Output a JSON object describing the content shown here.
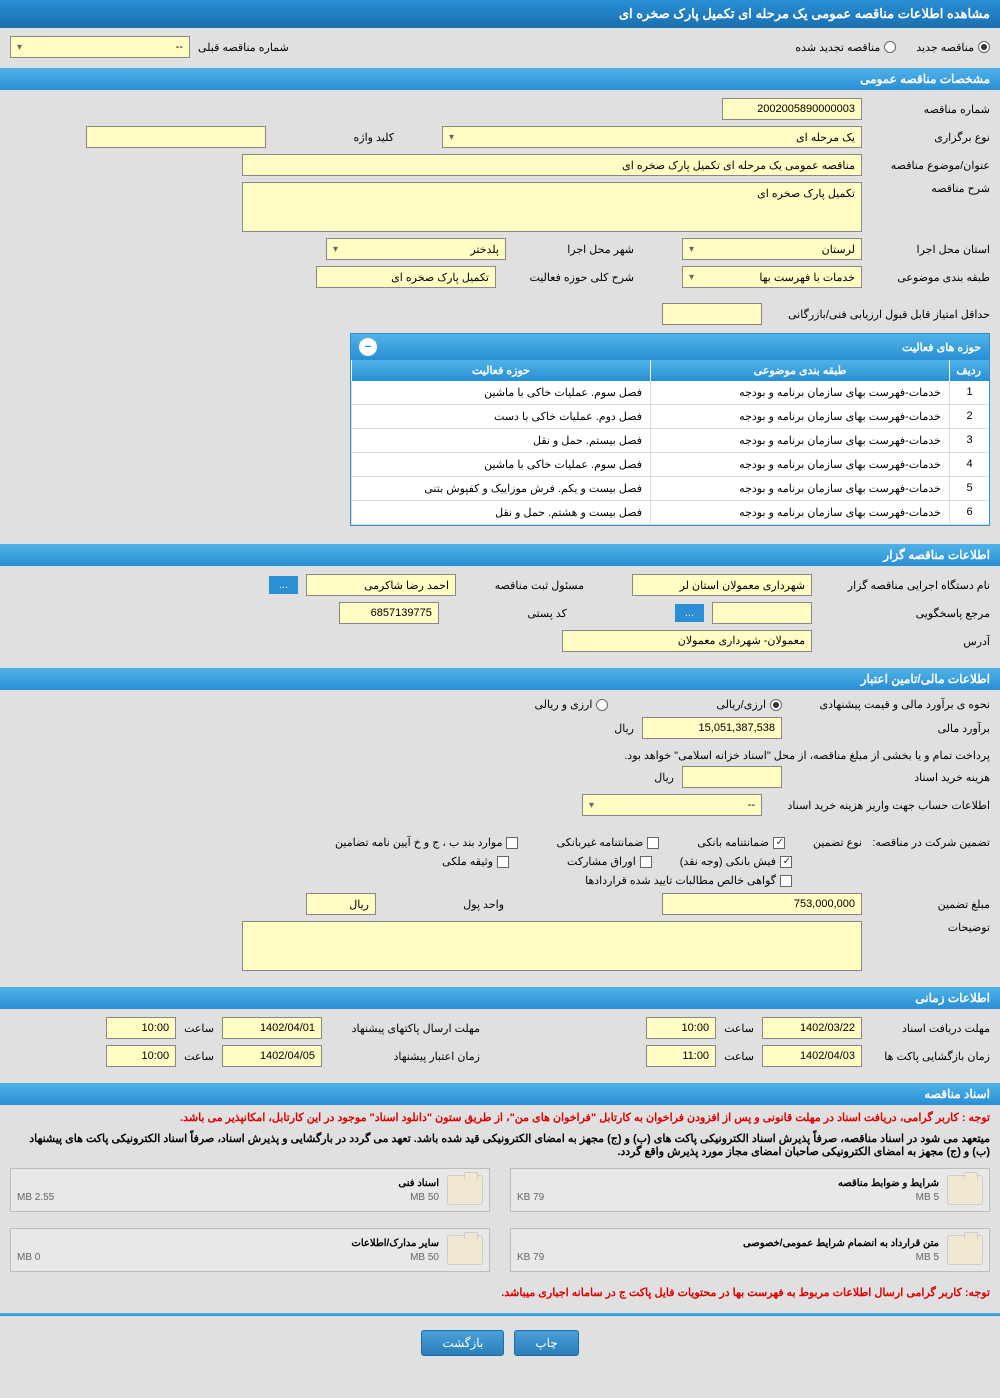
{
  "page_title": "مشاهده اطلاعات مناقصه عمومی یک مرحله ای تکمیل پارک صخره ای",
  "radio_options": {
    "new_tender": "مناقصه جدید",
    "renewed_tender": "مناقصه تجدید شده"
  },
  "prev_tender_label": "شماره مناقصه قبلی",
  "prev_tender_value": "--",
  "sections": {
    "general": "مشخصات مناقصه عمومی",
    "activities": "حوزه های فعالیت",
    "organizer": "اطلاعات مناقصه گزار",
    "financial": "اطلاعات مالی/تامین اعتبار",
    "timing": "اطلاعات زمانی",
    "documents": "اسناد مناقصه"
  },
  "general": {
    "tender_no_label": "شماره مناقصه",
    "tender_no": "2002005890000003",
    "type_label": "نوع برگزاری",
    "type": "یک مرحله ای",
    "keyword_label": "کلید واژه",
    "keyword": "",
    "title_label": "عنوان/موضوع مناقصه",
    "title": "مناقصه عمومی یک مرحله ای تکمیل پارک صخره ای",
    "desc_label": "شرح مناقصه",
    "desc": "تکمیل پارک صخره ای",
    "province_label": "استان محل اجرا",
    "province": "لرستان",
    "city_label": "شهر محل اجرا",
    "city": "پلدختر",
    "category_label": "طبقه بندی موضوعی",
    "category": "خدمات با فهرست بها",
    "activity_desc_label": "شرح کلی حوزه فعالیت",
    "activity_desc": "تکمیل پارک صخره ای",
    "min_score_label": "حداقل امتیاز قابل قبول ارزیابی فنی/بازرگانی",
    "min_score": ""
  },
  "table": {
    "col_idx": "ردیف",
    "col_category": "طبقه بندی موضوعی",
    "col_activity": "حوزه فعالیت",
    "rows": [
      {
        "idx": "1",
        "cat": "خدمات-فهرست بهای سازمان برنامه و بودجه",
        "act": "فصل سوم. عملیات خاکی با ماشین"
      },
      {
        "idx": "2",
        "cat": "خدمات-فهرست بهای سازمان برنامه و بودجه",
        "act": "فصل دوم. عملیات خاکی با دست"
      },
      {
        "idx": "3",
        "cat": "خدمات-فهرست بهای سازمان برنامه و بودجه",
        "act": "فصل بیستم. حمل و نقل"
      },
      {
        "idx": "4",
        "cat": "خدمات-فهرست بهای سازمان برنامه و بودجه",
        "act": "فصل سوم. عملیات خاکی با ماشین"
      },
      {
        "idx": "5",
        "cat": "خدمات-فهرست بهای سازمان برنامه و بودجه",
        "act": "فصل بیست و یکم. فرش موزاییک و کفپوش بتنی"
      },
      {
        "idx": "6",
        "cat": "خدمات-فهرست بهای سازمان برنامه و بودجه",
        "act": "فصل بیست و هشتم. حمل و نقل"
      }
    ]
  },
  "organizer": {
    "name_label": "نام دستگاه اجرایی مناقصه گزار",
    "name": "شهرداری معمولان استان لر",
    "reg_officer_label": "مسئول ثبت مناقصه",
    "reg_officer": "احمد رضا  شاکرمی",
    "contact_label": "مرجع پاسخگویی",
    "contact": "",
    "postal_label": "کد پستی",
    "postal": "6857139775",
    "address_label": "آدرس",
    "address": "معمولان- شهرداری معمولان",
    "more_btn": "..."
  },
  "financial": {
    "method_label": "نحوه ی برآورد مالی و قیمت پیشنهادی",
    "method_opt1": "ارزی/ریالی",
    "method_opt2": "ارزی و ریالی",
    "estimate_label": "برآورد مالی",
    "estimate": "15,051,387,538",
    "currency": "ریال",
    "note1": "پرداخت تمام و یا بخشی از مبلغ مناقصه، از محل \"اسناد خزانه اسلامی\" خواهد بود.",
    "purchase_cost_label": "هزینه خرید اسناد",
    "purchase_cost": "",
    "purchase_unit": "ریال",
    "account_info_label": "اطلاعات حساب جهت واریز هزینه خرید اسناد",
    "account_info": "--",
    "guarantee_label": "تضمین شرکت در مناقصه:",
    "guarantee_type_label": "نوع تضمین",
    "guarantee_types": {
      "bank_guarantee": "ضمانتنامه بانکی",
      "nonbank_guarantee": "ضمانتنامه غیربانکی",
      "regulation_items": "موارد بند ب ، ج و خ آیین نامه تضامین",
      "bank_receipt": "فیش بانکی (وجه نقد)",
      "securities": "اوراق مشارکت",
      "property_doc": "وثیقه ملکی",
      "confirmed_claims": "گواهی خالص مطالبات تایید شده قراردادها"
    },
    "guarantee_amount_label": "مبلغ تضمین",
    "guarantee_amount": "753,000,000",
    "unit_label": "واحد پول",
    "unit": "ریال",
    "explanation_label": "توضیحات",
    "explanation": ""
  },
  "timing": {
    "receive_deadline_label": "مهلت دریافت اسناد",
    "receive_deadline_date": "1402/03/22",
    "receive_deadline_time_label": "ساعت",
    "receive_deadline_time": "10:00",
    "submit_deadline_label": "مهلت ارسال پاکتهای پیشنهاد",
    "submit_deadline_date": "1402/04/01",
    "submit_deadline_time": "10:00",
    "opening_label": "زمان بازگشایی پاکت ها",
    "opening_date": "1402/04/03",
    "opening_time": "11:00",
    "validity_label": "زمان اعتبار پیشنهاد",
    "validity_date": "1402/04/05",
    "validity_time": "10:00"
  },
  "documents": {
    "note1": "توجه : کاربر گرامی، دریافت اسناد در مهلت قانونی و پس از افزودن فراخوان به کارتابل \"فراخوان های من\"، از طریق ستون \"دانلود اسناد\" موجود در این کارتابل، امکانپذیر می باشد.",
    "note2": "میتعهد می شود در اسناد مناقصه، صرفاً پذیرش اسناد الکترونیکی پاکت های (ب) و (ج) مجهز به امضای الکترونیکی قید شده باشد. تعهد می گردد در بارگشایی و پذیرش اسناد، صرفاً اسناد الکترونیکی پاکت های پیشنهاد (ب) و (ج) مجهز به امضای الکترونیکی صاحبان امضای مجاز مورد پذیرش واقع گردد.",
    "docs": [
      {
        "title": "شرایط و ضوابط مناقصه",
        "used": "79 KB",
        "total": "5 MB"
      },
      {
        "title": "اسناد فنی",
        "used": "2.55 MB",
        "total": "50 MB"
      },
      {
        "title": "متن قرارداد به انضمام شرایط عمومی/خصوصی",
        "used": "79 KB",
        "total": "5 MB"
      },
      {
        "title": "سایر مدارک/اطلاعات",
        "used": "0 MB",
        "total": "50 MB"
      }
    ],
    "footer_note": "توجه: کاربر گرامی ارسال اطلاعات مربوط به فهرست بها در محتویات فایل پاکت ج در سامانه اجباری میباشد."
  },
  "buttons": {
    "print": "چاپ",
    "back": "بازگشت"
  },
  "colors": {
    "header_bg": "#2a8fd4",
    "field_bg": "#fffdc4",
    "page_bg": "#e0e0e0",
    "red": "#d00000"
  }
}
